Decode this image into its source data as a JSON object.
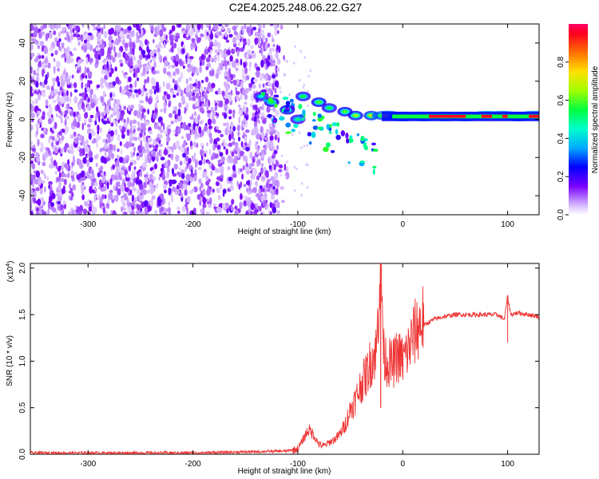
{
  "title": "C2E4.2025.248.06.22.G27",
  "chart_data": [
    {
      "type": "heatmap",
      "name": "spectrogram",
      "xlabel": "Height of straight line (km)",
      "ylabel": "Frequency (Hz)",
      "xlim": [
        -355,
        130
      ],
      "ylim": [
        -50,
        50
      ],
      "xticks": [
        "-300",
        "-200",
        "-100",
        "0",
        "100"
      ],
      "xtick_values": [
        -300,
        -200,
        -100,
        0,
        100
      ],
      "yticks": [
        "40",
        "20",
        "0",
        "-20",
        "-40"
      ],
      "ytick_values": [
        40,
        20,
        0,
        -20,
        -40
      ],
      "colorbar": {
        "label": "Normalized spectral amplitude",
        "range": [
          0,
          1
        ],
        "ticks": [
          "0.0",
          "0.2",
          "0.4",
          "0.6",
          "0.8"
        ],
        "tick_values": [
          0,
          0.2,
          0.4,
          0.6,
          0.8
        ],
        "colors": [
          "#ffffff",
          "#c8a0ff",
          "#7a00ff",
          "#0000ff",
          "#00c8ff",
          "#00ff60",
          "#b0ff00",
          "#ffe000",
          "#ff6000",
          "#ff0030",
          "#ff0066"
        ]
      },
      "noise_region_km": [
        -355,
        -118
      ],
      "signal_track": [
        {
          "x": -135,
          "f": 12,
          "a": 0.45
        },
        {
          "x": -125,
          "f": 9,
          "a": 0.55
        },
        {
          "x": -110,
          "f": 5,
          "a": 0.6
        },
        {
          "x": -100,
          "f": 0,
          "a": 0.5
        },
        {
          "x": -95,
          "f": 12,
          "a": 0.55
        },
        {
          "x": -80,
          "f": 9,
          "a": 0.6
        },
        {
          "x": -70,
          "f": 6,
          "a": 0.55
        },
        {
          "x": -55,
          "f": 4,
          "a": 0.6
        },
        {
          "x": -45,
          "f": 2,
          "a": 0.65
        },
        {
          "x": -30,
          "f": 2,
          "a": 0.7
        },
        {
          "x": -15,
          "f": 2,
          "a": 0.75
        },
        {
          "x": 0,
          "f": 1.5,
          "a": 0.8
        },
        {
          "x": 20,
          "f": 1.5,
          "a": 0.85
        },
        {
          "x": 40,
          "f": 1.5,
          "a": 0.9
        },
        {
          "x": 60,
          "f": 1.5,
          "a": 0.85
        },
        {
          "x": 80,
          "f": 2,
          "a": 0.9
        },
        {
          "x": 95,
          "f": 2,
          "a": 0.85
        },
        {
          "x": 110,
          "f": 1.5,
          "a": 0.8
        },
        {
          "x": 125,
          "f": 2,
          "a": 0.85
        }
      ]
    },
    {
      "type": "line",
      "name": "snr",
      "xlabel": "Height of straight line (km)",
      "ylabel": "SNR (10 * v/v)",
      "y_multiplier": "(x10",
      "y_multiplier_exp": "4",
      "y_multiplier_close": ")",
      "xlim": [
        -355,
        130
      ],
      "ylim": [
        0,
        2.05
      ],
      "xticks": [
        "-300",
        "-200",
        "-100",
        "0",
        "100"
      ],
      "xtick_values": [
        -300,
        -200,
        -100,
        0,
        100
      ],
      "yticks": [
        "0.0",
        "0.5",
        "1.0",
        "1.5",
        "2.0"
      ],
      "ytick_values": [
        0,
        0.5,
        1.0,
        1.5,
        2.0
      ],
      "color": "#ee3333",
      "series": [
        {
          "x": -355,
          "y": 0.0
        },
        {
          "x": -300,
          "y": 0.0
        },
        {
          "x": -200,
          "y": 0.0
        },
        {
          "x": -150,
          "y": 0.01
        },
        {
          "x": -110,
          "y": 0.02
        },
        {
          "x": -100,
          "y": 0.05
        },
        {
          "x": -95,
          "y": 0.15
        },
        {
          "x": -90,
          "y": 0.25
        },
        {
          "x": -85,
          "y": 0.2
        },
        {
          "x": -80,
          "y": 0.1
        },
        {
          "x": -75,
          "y": 0.08
        },
        {
          "x": -70,
          "y": 0.12
        },
        {
          "x": -65,
          "y": 0.15
        },
        {
          "x": -60,
          "y": 0.2
        },
        {
          "x": -55,
          "y": 0.3
        },
        {
          "x": -50,
          "y": 0.45
        },
        {
          "x": -45,
          "y": 0.55
        },
        {
          "x": -40,
          "y": 0.7
        },
        {
          "x": -35,
          "y": 0.8
        },
        {
          "x": -30,
          "y": 0.95
        },
        {
          "x": -25,
          "y": 1.05
        },
        {
          "x": -21,
          "y": 2.05
        },
        {
          "x": -18,
          "y": 1.0
        },
        {
          "x": -15,
          "y": 0.95
        },
        {
          "x": -10,
          "y": 0.9
        },
        {
          "x": -5,
          "y": 1.0
        },
        {
          "x": 0,
          "y": 0.95
        },
        {
          "x": 5,
          "y": 1.05
        },
        {
          "x": 10,
          "y": 1.2
        },
        {
          "x": 15,
          "y": 1.3
        },
        {
          "x": 20,
          "y": 1.38
        },
        {
          "x": 25,
          "y": 1.42
        },
        {
          "x": 30,
          "y": 1.45
        },
        {
          "x": 40,
          "y": 1.48
        },
        {
          "x": 50,
          "y": 1.5
        },
        {
          "x": 60,
          "y": 1.5
        },
        {
          "x": 70,
          "y": 1.5
        },
        {
          "x": 80,
          "y": 1.5
        },
        {
          "x": 90,
          "y": 1.5
        },
        {
          "x": 97,
          "y": 1.45
        },
        {
          "x": 100,
          "y": 1.7
        },
        {
          "x": 103,
          "y": 1.5
        },
        {
          "x": 110,
          "y": 1.52
        },
        {
          "x": 120,
          "y": 1.5
        },
        {
          "x": 130,
          "y": 1.48
        }
      ]
    }
  ]
}
